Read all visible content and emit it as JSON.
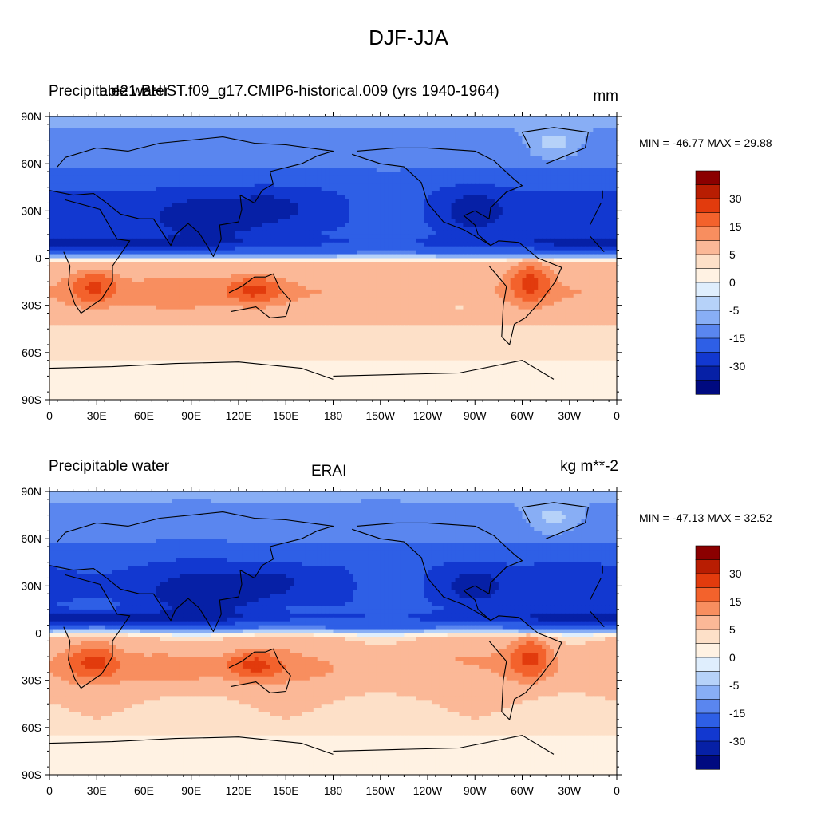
{
  "title": "DJF-JJA",
  "panels": [
    {
      "left_label": "Precipitable water",
      "center_label": "b.e21.BHIST.f09_g17.CMIP6-historical.009 (yrs 1940-1964)",
      "right_label": "mm",
      "min_max": "MIN = -46.77 MAX =  29.88",
      "field": "model"
    },
    {
      "left_label": "Precipitable water",
      "center_label": "ERAI",
      "right_label": "kg m**-2",
      "min_max": "MIN = -47.13 MAX =  32.52",
      "field": "obs"
    }
  ],
  "axes": {
    "lat_ticks": [
      "90N",
      "60N",
      "30N",
      "0",
      "30S",
      "60S",
      "90S"
    ],
    "lon_ticks": [
      "0",
      "30E",
      "60E",
      "90E",
      "120E",
      "150E",
      "180",
      "150W",
      "120W",
      "90W",
      "60W",
      "30W",
      "0"
    ]
  },
  "colorbar": {
    "labels": [
      "30",
      "15",
      "5",
      "0",
      "-5",
      "-15",
      "-30"
    ],
    "colors": [
      "#8b0000",
      "#b81d02",
      "#e23b0d",
      "#f3622c",
      "#f88e5f",
      "#fbb897",
      "#fde0c8",
      "#fff2e3",
      "#dfeefd",
      "#b6d2f9",
      "#88aef5",
      "#5a86ef",
      "#2e5fe6",
      "#1238d0",
      "#0620a6",
      "#000a80"
    ]
  },
  "chart_data": {
    "type": "heatmap",
    "description_units": [
      "mm",
      "kg m**-2"
    ],
    "x_range": [
      "0",
      "0"
    ],
    "y_range": [
      "90S",
      "90N"
    ],
    "colorbar_levels": [
      -30,
      -15,
      -5,
      0,
      5,
      15,
      30
    ]
  }
}
